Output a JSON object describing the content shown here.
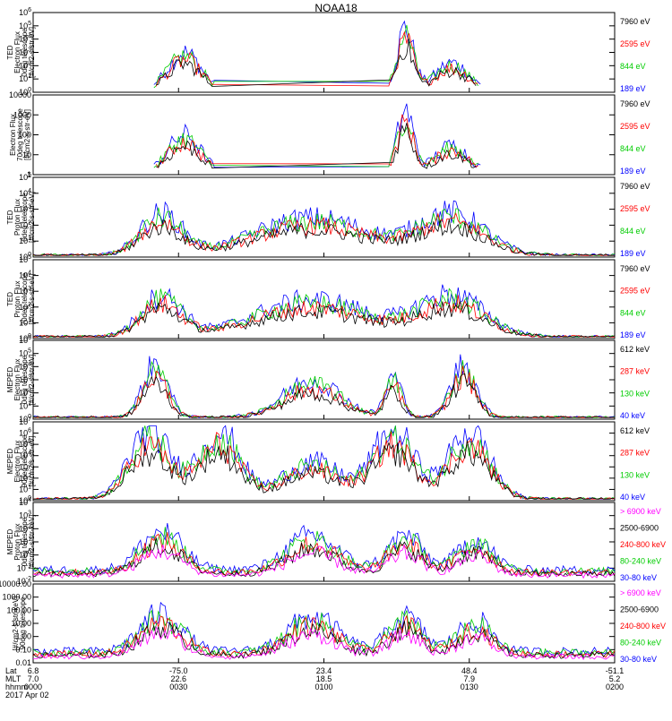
{
  "title": "NOAA18",
  "footer": {
    "row_labels": [
      "Lat",
      "MLT",
      "hhmm"
    ],
    "date": "2017 Apr 02",
    "columns": [
      {
        "lat": "6.8",
        "mlt": "7.0",
        "hhmm": "0000"
      },
      {
        "lat": "-75.0",
        "mlt": "22.6",
        "hhmm": "0030"
      },
      {
        "lat": "23.4",
        "mlt": "18.5",
        "hhmm": "0100"
      },
      {
        "lat": "48.4",
        "mlt": "7.9",
        "hhmm": "0130"
      },
      {
        "lat": "-51.1",
        "mlt": "5.2",
        "hhmm": "0200"
      }
    ]
  },
  "colors": {
    "black": "#000000",
    "red": "#ff0000",
    "green": "#00cc00",
    "blue": "#0000ff",
    "magenta": "#ff00ff"
  },
  "chart_data": [
    {
      "type": "line",
      "ylabel": [
        "TED",
        "Electron Flux",
        "0deg telescope",
        "[#/cm2-s-str-eV]"
      ],
      "yscale": "log",
      "yticks": [
        "10^0",
        "10^1",
        "10^2",
        "10^3",
        "10^4",
        "10^5",
        "10^6"
      ],
      "series": [
        {
          "name": "7960 eV",
          "color": "#000000"
        },
        {
          "name": "2595 eV",
          "color": "#ff0000"
        },
        {
          "name": "844 eV",
          "color": "#00cc00"
        },
        {
          "name": "189 eV",
          "color": "#0000ff"
        }
      ]
    },
    {
      "type": "line",
      "ylabel": [
        "Electron Flux",
        "70deg telescope",
        "[#/cm2-s-str-eV]"
      ],
      "yscale": "log",
      "yticks": [
        "1",
        "10",
        "100",
        "1000",
        "10000"
      ],
      "series": [
        {
          "name": "7960 eV",
          "color": "#000000"
        },
        {
          "name": "2595 eV",
          "color": "#ff0000"
        },
        {
          "name": "844 eV",
          "color": "#00cc00"
        },
        {
          "name": "189 eV",
          "color": "#0000ff"
        }
      ]
    },
    {
      "type": "line",
      "ylabel": [
        "TED",
        "Proton Flux",
        "0deg telescope",
        "[#/cm2-s-str-eV]"
      ],
      "yscale": "log",
      "yticks": [
        "10^0",
        "10^1",
        "10^2",
        "10^3",
        "10^4",
        "10^5"
      ],
      "series": [
        {
          "name": "7960 eV",
          "color": "#000000"
        },
        {
          "name": "2595 eV",
          "color": "#ff0000"
        },
        {
          "name": "844 eV",
          "color": "#00cc00"
        },
        {
          "name": "189 eV",
          "color": "#0000ff"
        }
      ]
    },
    {
      "type": "line",
      "ylabel": [
        "TED",
        "Proton Flux",
        "70deg telescope",
        "[#/cm2-s-str-eV]"
      ],
      "yscale": "log",
      "yticks": [
        "10^0",
        "10^1",
        "10^2",
        "10^3",
        "10^4",
        "10^5"
      ],
      "series": [
        {
          "name": "7960 eV",
          "color": "#000000"
        },
        {
          "name": "2595 eV",
          "color": "#ff0000"
        },
        {
          "name": "844 eV",
          "color": "#00cc00"
        },
        {
          "name": "189 eV",
          "color": "#0000ff"
        }
      ]
    },
    {
      "type": "line",
      "ylabel": [
        "MEPED",
        "Electron Flux",
        "0deg telescope",
        "[#/cm2-s-str-eV]"
      ],
      "yscale": "log",
      "yticks": [
        "10^0",
        "10^1",
        "10^2",
        "10^3",
        "10^4",
        "10^5",
        "10^6"
      ],
      "series": [
        {
          "name": "612 keV",
          "color": "#000000"
        },
        {
          "name": "287 keV",
          "color": "#ff0000"
        },
        {
          "name": "130 keV",
          "color": "#00cc00"
        },
        {
          "name": "40 keV",
          "color": "#0000ff"
        }
      ]
    },
    {
      "type": "line",
      "ylabel": [
        "MEPED",
        "Electron Flux",
        "90deg telescope",
        "[#/cm2-s-str-eV]"
      ],
      "yscale": "log",
      "yticks": [
        "10^0",
        "10^1",
        "10^2",
        "10^3",
        "10^4",
        "10^5",
        "10^6",
        "10^7"
      ],
      "series": [
        {
          "name": "612 keV",
          "color": "#000000"
        },
        {
          "name": "287 keV",
          "color": "#ff0000"
        },
        {
          "name": "130 keV",
          "color": "#00cc00"
        },
        {
          "name": "40 keV",
          "color": "#0000ff"
        }
      ]
    },
    {
      "type": "line",
      "ylabel": [
        "MEPED",
        "Proton Flux",
        "0deg telescope",
        "[#/cm2-s-str-keV]"
      ],
      "yscale": "log",
      "yticks": [
        "10^-2",
        "10^-1",
        "10^0",
        "10^1",
        "10^2",
        "10^3",
        "10^4"
      ],
      "series": [
        {
          "name": "> 6900 keV",
          "color": "#ff00ff"
        },
        {
          "name": "2500-6900",
          "color": "#000000"
        },
        {
          "name": "240-800 keV",
          "color": "#ff0000"
        },
        {
          "name": "80-240 keV",
          "color": "#00cc00"
        },
        {
          "name": "30-80 keV",
          "color": "#0000ff"
        }
      ]
    },
    {
      "type": "line",
      "ylabel": [
        "[#/cm2-s-str-keV]",
        "90deg telescope"
      ],
      "yscale": "log",
      "yticks": [
        "0.01",
        "0.10",
        "1.00",
        "10.00",
        "100.00",
        "1000.00",
        "10000.00"
      ],
      "series": [
        {
          "name": "> 6900 keV",
          "color": "#ff00ff"
        },
        {
          "name": "2500-6900",
          "color": "#000000"
        },
        {
          "name": "240-800 keV",
          "color": "#ff0000"
        },
        {
          "name": "80-240 keV",
          "color": "#00cc00"
        },
        {
          "name": "30-80 keV",
          "color": "#0000ff"
        }
      ]
    }
  ]
}
